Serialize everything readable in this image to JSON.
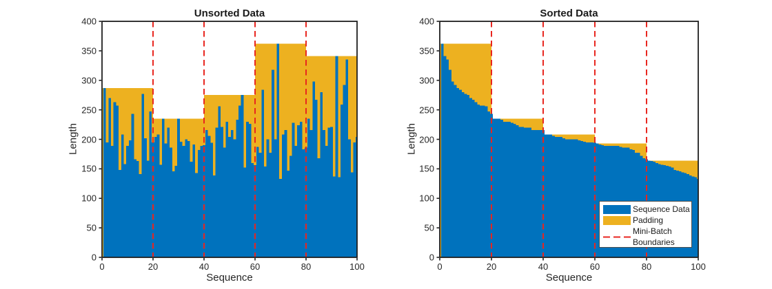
{
  "figure": {
    "background": "#ffffff"
  },
  "colors": {
    "sequence_blue": "#0072BD",
    "padding_yellow": "#EDB120",
    "boundary_red": "#E8261F",
    "axis": "#1f1f1f"
  },
  "chart_data": [
    {
      "type": "bar",
      "title": "Unsorted Data",
      "xlabel": "Sequence",
      "ylabel": "Length",
      "xlim": [
        0,
        100
      ],
      "ylim": [
        0,
        400
      ],
      "xticks": [
        0,
        20,
        40,
        60,
        80,
        100
      ],
      "yticks": [
        0,
        50,
        100,
        150,
        200,
        250,
        300,
        350,
        400
      ],
      "mini_batch_size": 20,
      "boundaries": [
        20,
        40,
        60,
        80
      ],
      "series": [
        {
          "name": "Sequence Data",
          "color_key": "sequence_blue",
          "values": [
            287,
            195,
            270,
            189,
            263,
            257,
            148,
            208,
            158,
            189,
            198,
            243,
            166,
            163,
            141,
            277,
            202,
            164,
            247,
            195,
            204,
            208,
            157,
            235,
            193,
            220,
            186,
            146,
            155,
            235,
            196,
            189,
            200,
            197,
            162,
            191,
            143,
            182,
            189,
            190,
            216,
            206,
            194,
            139,
            220,
            256,
            221,
            186,
            230,
            204,
            216,
            200,
            233,
            257,
            275,
            152,
            230,
            226,
            160,
            156,
            187,
            177,
            284,
            154,
            200,
            177,
            318,
            200,
            362,
            133,
            208,
            216,
            147,
            172,
            228,
            189,
            224,
            230,
            183,
            186,
            235,
            216,
            298,
            267,
            168,
            280,
            216,
            189,
            220,
            221,
            137,
            341,
            136,
            259,
            292,
            335,
            200,
            144,
            195,
            204
          ]
        },
        {
          "name": "Padding",
          "color_key": "padding_yellow",
          "note": "fills from each sequence length up to the max length within its mini-batch of 20"
        }
      ]
    },
    {
      "type": "bar",
      "title": "Sorted Data",
      "xlabel": "Sequence",
      "ylabel": "Length",
      "xlim": [
        0,
        100
      ],
      "ylim": [
        0,
        400
      ],
      "xticks": [
        0,
        20,
        40,
        60,
        80,
        100
      ],
      "yticks": [
        0,
        50,
        100,
        150,
        200,
        250,
        300,
        350,
        400
      ],
      "mini_batch_size": 20,
      "boundaries": [
        20,
        40,
        60,
        80
      ],
      "series": [
        {
          "name": "Sequence Data",
          "color_key": "sequence_blue",
          "values": [
            362,
            341,
            335,
            318,
            298,
            292,
            287,
            284,
            280,
            277,
            275,
            270,
            267,
            263,
            259,
            257,
            257,
            256,
            247,
            243,
            235,
            235,
            235,
            233,
            230,
            230,
            230,
            228,
            226,
            224,
            221,
            221,
            220,
            220,
            220,
            216,
            216,
            216,
            216,
            216,
            208,
            208,
            208,
            206,
            204,
            204,
            204,
            202,
            200,
            200,
            200,
            200,
            200,
            198,
            197,
            196,
            195,
            195,
            195,
            194,
            193,
            191,
            190,
            189,
            189,
            189,
            189,
            189,
            189,
            187,
            186,
            186,
            186,
            183,
            182,
            177,
            177,
            172,
            168,
            166,
            164,
            163,
            162,
            160,
            158,
            157,
            156,
            155,
            154,
            152,
            148,
            147,
            146,
            144,
            143,
            141,
            139,
            137,
            136,
            133
          ]
        },
        {
          "name": "Padding",
          "color_key": "padding_yellow",
          "note": "fills from each sequence length up to the max length within its mini-batch of 20"
        }
      ]
    }
  ],
  "legend": {
    "items": [
      {
        "label": "Sequence Data",
        "swatch": "fill",
        "color_key": "sequence_blue"
      },
      {
        "label": "Padding",
        "swatch": "fill",
        "color_key": "padding_yellow"
      },
      {
        "label": "Mini-Batch Boundaries",
        "label_lines": [
          "Mini-Batch",
          "Boundaries"
        ],
        "swatch": "dashed-line",
        "color_key": "boundary_red"
      }
    ]
  }
}
